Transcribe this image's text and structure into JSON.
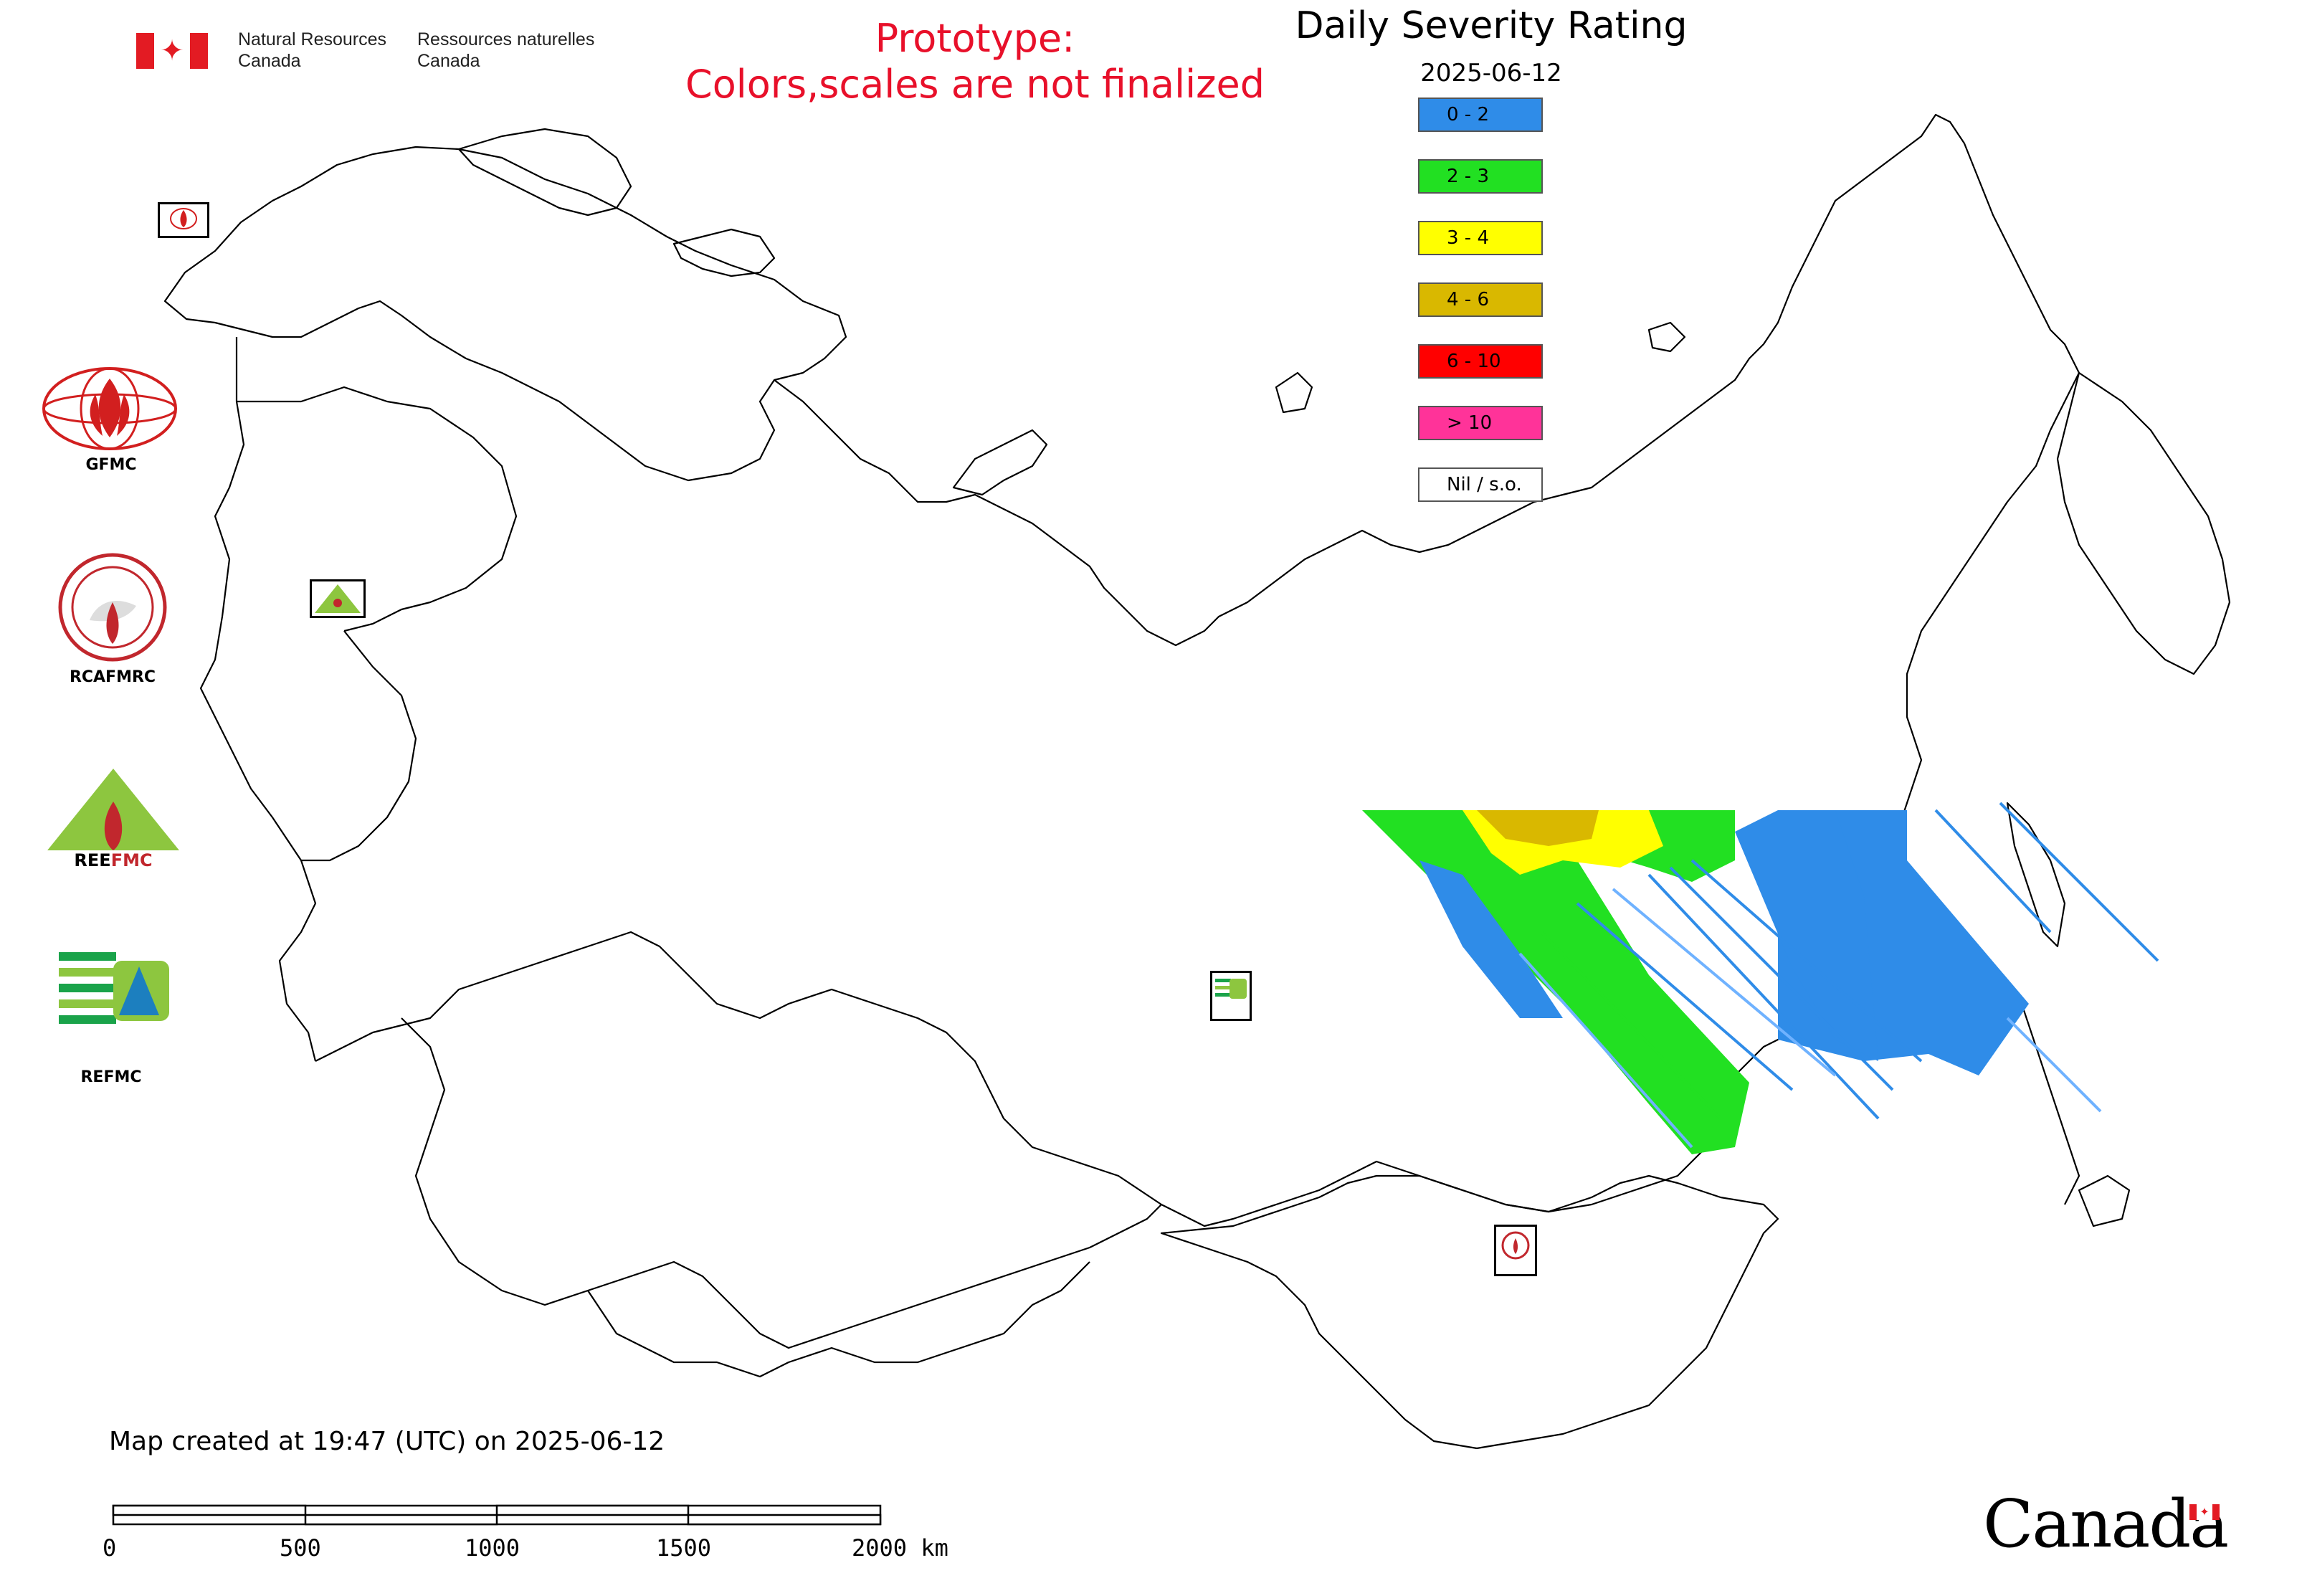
{
  "header": {
    "nrc_en_line1": "Natural Resources",
    "nrc_en_line2": "Canada",
    "nrc_fr_line1": "Ressources naturelles",
    "nrc_fr_line2": "Canada",
    "prototype_line1": "Prototype:",
    "prototype_line2": "Colors,scales are not finalized"
  },
  "legend": {
    "title": "Daily Severity Rating",
    "date": "2025-06-12",
    "items": [
      {
        "label": "0 - 2",
        "color": "#2f8ce8"
      },
      {
        "label": "2 - 3",
        "color": "#22e022"
      },
      {
        "label": "3 - 4",
        "color": "#ffff00"
      },
      {
        "label": "4 - 6",
        "color": "#d9b800"
      },
      {
        "label": "6 - 10",
        "color": "#ff0000"
      },
      {
        "label": "> 10",
        "color": "#ff3399"
      },
      {
        "label": "Nil / s.o.",
        "color": "#ffffff"
      }
    ]
  },
  "logos": {
    "gfmc": "GFMC",
    "rcafmrc": "RCAFMRC",
    "reefmc": "REEFMC",
    "refmc": "REFMC"
  },
  "footer": {
    "created": "Map created at 19:47 (UTC) on 2025-06-12",
    "scale_labels": [
      "0",
      "500",
      "1000",
      "1500",
      "2000 km"
    ],
    "wordmark": "Canada"
  },
  "colors": {
    "prototype_red": "#e8102a",
    "canada_flag_red": "#e31b23",
    "coastline": "#000000"
  }
}
